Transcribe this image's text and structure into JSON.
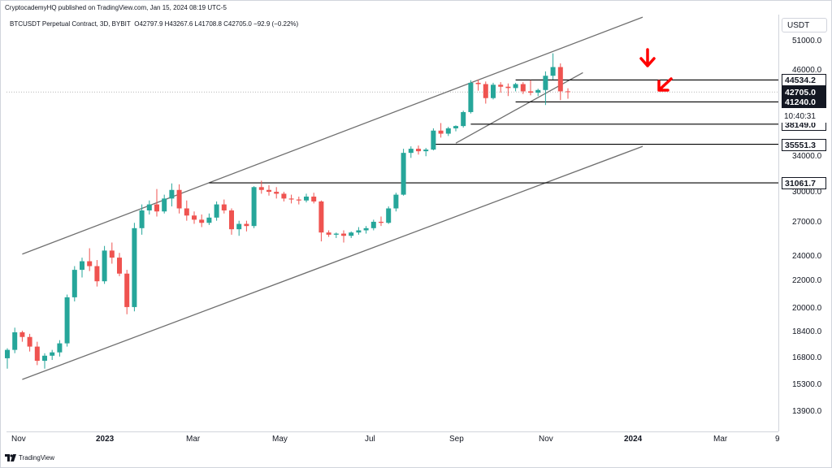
{
  "publisher_line": "CryptocademyHQ published on TradingView.com, Jan 15, 2024 08:19 UTC-5",
  "legend": {
    "symbol": "BTCUSDT Perpetual Contract, 3D, BYBIT",
    "ohlc": "O42797.9 H43267.6 L41708.8 C42705.0 −92.9 (−0.22%)"
  },
  "currency": "USDT",
  "price_axis_labels": [
    "51000.0",
    "46000.0",
    "34000.0",
    "30000.0",
    "27000.0",
    "24000.0",
    "22000.0",
    "20000.0",
    "18400.0",
    "16800.0",
    "15300.0",
    "13900.0"
  ],
  "price_badges": [
    {
      "text": "44534.2",
      "style": "light"
    },
    {
      "text": "42705.0",
      "style": "dark"
    },
    {
      "text": "41240.0",
      "style": "dark"
    },
    {
      "text": "38149.0",
      "style": "light"
    },
    {
      "text": "35551.3",
      "style": "light"
    },
    {
      "text": "31061.7",
      "style": "light"
    }
  ],
  "countdown": "10:40:31",
  "time_axis": [
    {
      "text": "Nov",
      "bold": false
    },
    {
      "text": "2023",
      "bold": true
    },
    {
      "text": "Mar",
      "bold": false
    },
    {
      "text": "May",
      "bold": false
    },
    {
      "text": "Jul",
      "bold": false
    },
    {
      "text": "Sep",
      "bold": false
    },
    {
      "text": "Nov",
      "bold": false
    },
    {
      "text": "2024",
      "bold": true
    },
    {
      "text": "Mar",
      "bold": false
    },
    {
      "text": "9",
      "bold": false
    }
  ],
  "footer": "TradingView",
  "colors": {
    "up": "#26a69a",
    "down": "#ef5350",
    "annotation": "#ff0000",
    "line": "#6f6f6f",
    "level": "#000000"
  },
  "chart_data": {
    "type": "candlestick",
    "symbol": "BTCUSDT Perpetual Contract",
    "interval": "3D",
    "exchange": "BYBIT",
    "ylog": true,
    "ylim": [
      13000,
      56000
    ],
    "xlim": [
      -1,
      87
    ],
    "last_close": 42705.0,
    "candles": [
      [
        16800,
        17400,
        16200,
        17300
      ],
      [
        17300,
        18700,
        17100,
        18400
      ],
      [
        18400,
        18500,
        17800,
        18100
      ],
      [
        18100,
        18300,
        17200,
        17500
      ],
      [
        17500,
        17800,
        16400,
        16650
      ],
      [
        16650,
        17100,
        16200,
        16950
      ],
      [
        16950,
        17300,
        16700,
        17150
      ],
      [
        17150,
        17900,
        16900,
        17700
      ],
      [
        17700,
        21000,
        17500,
        20800
      ],
      [
        20800,
        23200,
        20500,
        22900
      ],
      [
        22900,
        23900,
        22300,
        23600
      ],
      [
        23600,
        24700,
        22800,
        23200
      ],
      [
        23200,
        23700,
        21600,
        22000
      ],
      [
        22000,
        24900,
        21800,
        24500
      ],
      [
        24500,
        25200,
        23400,
        23900
      ],
      [
        23900,
        24300,
        22400,
        22600
      ],
      [
        22600,
        22900,
        19600,
        20100
      ],
      [
        20100,
        27000,
        19800,
        26500
      ],
      [
        26500,
        28800,
        25900,
        28200
      ],
      [
        28200,
        29200,
        27800,
        28800
      ],
      [
        28800,
        30400,
        27600,
        28100
      ],
      [
        28100,
        29800,
        27900,
        29400
      ],
      [
        29400,
        31000,
        28600,
        30300
      ],
      [
        30300,
        30900,
        27900,
        28400
      ],
      [
        28400,
        29200,
        27200,
        27700
      ],
      [
        27700,
        28100,
        26900,
        27300
      ],
      [
        27300,
        27800,
        26600,
        27000
      ],
      [
        27000,
        27900,
        26800,
        27500
      ],
      [
        27500,
        29100,
        27200,
        28800
      ],
      [
        28800,
        29300,
        27900,
        28200
      ],
      [
        28200,
        28400,
        25900,
        26400
      ],
      [
        26400,
        27200,
        25800,
        26900
      ],
      [
        26900,
        27200,
        26200,
        26700
      ],
      [
        26700,
        30700,
        26500,
        30600
      ],
      [
        30600,
        31300,
        29900,
        30300
      ],
      [
        30300,
        30800,
        29700,
        30100
      ],
      [
        30100,
        30600,
        29400,
        29900
      ],
      [
        29900,
        30100,
        29100,
        29400
      ],
      [
        29400,
        29800,
        28900,
        29300
      ],
      [
        29300,
        29600,
        28800,
        29200
      ],
      [
        29200,
        29900,
        29000,
        29600
      ],
      [
        29600,
        30000,
        28900,
        29100
      ],
      [
        29100,
        29200,
        25300,
        26100
      ],
      [
        26100,
        26300,
        25700,
        25900
      ],
      [
        25900,
        26100,
        25600,
        26000
      ],
      [
        26000,
        26300,
        25200,
        25800
      ],
      [
        25800,
        26200,
        25600,
        26100
      ],
      [
        26100,
        26600,
        25900,
        26300
      ],
      [
        26300,
        26700,
        26000,
        26500
      ],
      [
        26500,
        27300,
        26300,
        27100
      ],
      [
        27100,
        27600,
        26700,
        27000
      ],
      [
        27000,
        28600,
        26900,
        28400
      ],
      [
        28400,
        30000,
        28100,
        29800
      ],
      [
        29800,
        35000,
        29700,
        34500
      ],
      [
        34500,
        35300,
        33900,
        35000
      ],
      [
        35000,
        35400,
        34300,
        34700
      ],
      [
        34700,
        35100,
        34100,
        34900
      ],
      [
        34900,
        37600,
        34800,
        37300
      ],
      [
        37300,
        38300,
        36400,
        36900
      ],
      [
        36900,
        37800,
        36600,
        37600
      ],
      [
        37600,
        38000,
        37200,
        37900
      ],
      [
        37900,
        40000,
        37700,
        39800
      ],
      [
        39800,
        44500,
        39600,
        44100
      ],
      [
        44100,
        44600,
        42900,
        43900
      ],
      [
        43900,
        44300,
        41000,
        41800
      ],
      [
        41800,
        44100,
        41600,
        43800
      ],
      [
        43800,
        44200,
        42600,
        43500
      ],
      [
        43500,
        44000,
        42100,
        43300
      ],
      [
        43300,
        44100,
        42800,
        43900
      ],
      [
        43900,
        44200,
        42400,
        42800
      ],
      [
        42800,
        44500,
        42200,
        42600
      ],
      [
        42600,
        43200,
        42100,
        43000
      ],
      [
        43000,
        45900,
        40800,
        45200
      ],
      [
        45200,
        48900,
        44600,
        46600
      ],
      [
        46600,
        47200,
        41500,
        42800
      ],
      [
        42797.9,
        43267.6,
        41708.8,
        42705.0
      ]
    ],
    "horizontal_levels": [
      44534.2,
      41240.0,
      38149.0,
      35551.3,
      31061.7
    ],
    "trendlines": [
      {
        "name": "upper-channel",
        "from": [
          2,
          24200
        ],
        "to": [
          85,
          55500
        ]
      },
      {
        "name": "lower-channel",
        "from": [
          2,
          15600
        ],
        "to": [
          85,
          35300
        ]
      },
      {
        "name": "support-diagonal",
        "from": [
          60,
          35700
        ],
        "to": [
          77,
          45700
        ]
      }
    ]
  }
}
